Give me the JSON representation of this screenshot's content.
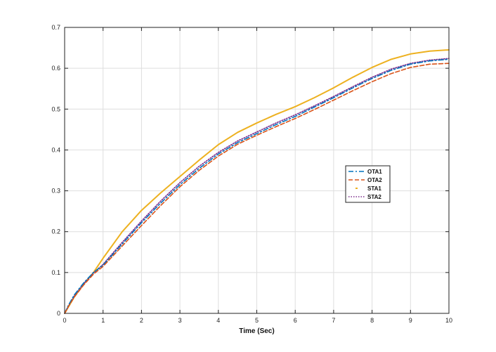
{
  "chart_data": {
    "type": "line",
    "title": "",
    "xlabel": "Time (Sec)",
    "ylabel": "",
    "xlim": [
      0,
      10
    ],
    "ylim": [
      0,
      0.7
    ],
    "xticks": [
      "0",
      "1",
      "2",
      "3",
      "4",
      "5",
      "6",
      "7",
      "8",
      "9",
      "10"
    ],
    "yticks": [
      "0",
      "0.1",
      "0.2",
      "0.3",
      "0.4",
      "0.5",
      "0.6",
      "0.7"
    ],
    "grid": true,
    "legend_position": "right-center",
    "x": [
      0,
      0.1,
      0.25,
      0.5,
      0.75,
      1,
      1.5,
      2,
      2.5,
      3,
      3.5,
      4,
      4.5,
      5,
      5.5,
      6,
      6.5,
      7,
      7.5,
      8,
      8.5,
      9,
      9.5,
      10
    ],
    "series": [
      {
        "name": "OTA1",
        "color": "#0072BD",
        "dash": "dashdot",
        "values": [
          0,
          0.02,
          0.045,
          0.075,
          0.1,
          0.118,
          0.17,
          0.222,
          0.27,
          0.315,
          0.355,
          0.39,
          0.418,
          0.44,
          0.462,
          0.482,
          0.505,
          0.528,
          0.552,
          0.575,
          0.595,
          0.61,
          0.618,
          0.622
        ]
      },
      {
        "name": "OTA2",
        "color": "#D95319",
        "dash": "dashed",
        "values": [
          0,
          0.017,
          0.04,
          0.07,
          0.096,
          0.115,
          0.165,
          0.215,
          0.264,
          0.31,
          0.35,
          0.385,
          0.414,
          0.436,
          0.457,
          0.477,
          0.499,
          0.522,
          0.545,
          0.567,
          0.587,
          0.602,
          0.61,
          0.612
        ]
      },
      {
        "name": "STA1",
        "color": "#EDB120",
        "dash": "solid",
        "values": [
          0,
          0.016,
          0.04,
          0.072,
          0.1,
          0.135,
          0.2,
          0.252,
          0.295,
          0.335,
          0.375,
          0.413,
          0.443,
          0.466,
          0.487,
          0.506,
          0.528,
          0.552,
          0.578,
          0.602,
          0.622,
          0.635,
          0.642,
          0.645
        ]
      },
      {
        "name": "STA2",
        "color": "#7E2F8E",
        "dash": "dotted",
        "values": [
          0,
          0.018,
          0.042,
          0.073,
          0.099,
          0.12,
          0.174,
          0.226,
          0.275,
          0.32,
          0.36,
          0.394,
          0.422,
          0.444,
          0.466,
          0.486,
          0.508,
          0.531,
          0.555,
          0.578,
          0.598,
          0.612,
          0.62,
          0.624
        ]
      }
    ]
  }
}
